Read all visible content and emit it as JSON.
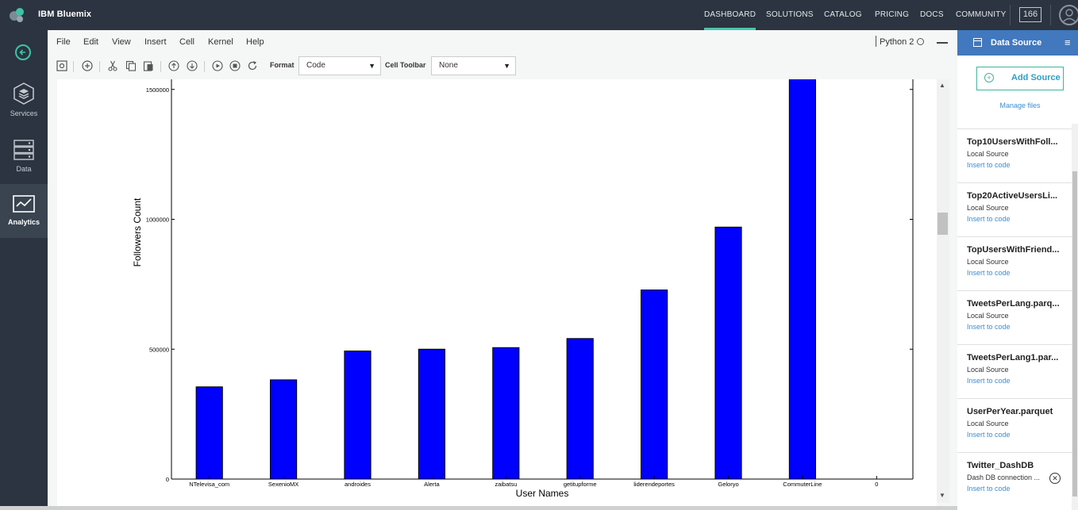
{
  "topbar": {
    "brand": "IBM Bluemix",
    "nav": [
      {
        "label": "DASHBOARD",
        "active": true
      },
      {
        "label": "SOLUTIONS",
        "active": false
      },
      {
        "label": "CATALOG",
        "active": false
      },
      {
        "label": "PRICING",
        "active": false
      },
      {
        "label": "DOCS",
        "active": false
      },
      {
        "label": "COMMUNITY",
        "active": false
      }
    ],
    "notification_count": "166"
  },
  "leftnav": {
    "items": [
      {
        "label": "Services",
        "icon": "services-icon"
      },
      {
        "label": "Data",
        "icon": "data-icon"
      },
      {
        "label": "Analytics",
        "icon": "analytics-icon",
        "active": true
      }
    ]
  },
  "notebook": {
    "menus": [
      "File",
      "Edit",
      "View",
      "Insert",
      "Cell",
      "Kernel",
      "Help"
    ],
    "kernel": "Python 2",
    "toolbar": {
      "format_label": "Format",
      "format_value": "Code",
      "cell_toolbar_label": "Cell Toolbar",
      "cell_toolbar_value": "None"
    }
  },
  "chart_data": {
    "type": "bar",
    "categories": [
      "NTelevisa_com",
      "SexenioMX",
      "androides",
      "Alerta",
      "zaibatsu",
      "getitupforme",
      "liderendeportes",
      "Geloryo",
      "CommuterLine",
      "0"
    ],
    "values": [
      355000,
      382000,
      493000,
      500000,
      506000,
      541000,
      728000,
      970000,
      1620000,
      null
    ],
    "xlabel": "User Names",
    "ylabel": "Followers Count",
    "yticks": [
      "0",
      "500000",
      "1000000",
      "1500000"
    ],
    "ylim": [
      0,
      1500000
    ],
    "bar_color": "#0000ff",
    "grid": false
  },
  "data_source": {
    "title": "Data Source",
    "add_label": "Add Source",
    "manage_label": "Manage files",
    "items": [
      {
        "name": "Top10UsersWithFoll...",
        "type": "Local Source",
        "action": "Insert to code"
      },
      {
        "name": "Top20ActiveUsersLi...",
        "type": "Local Source",
        "action": "Insert to code"
      },
      {
        "name": "TopUsersWithFriend...",
        "type": "Local Source",
        "action": "Insert to code"
      },
      {
        "name": "TweetsPerLang.parq...",
        "type": "Local Source",
        "action": "Insert to code"
      },
      {
        "name": "TweetsPerLang1.par...",
        "type": "Local Source",
        "action": "Insert to code"
      },
      {
        "name": "UserPerYear.parquet",
        "type": "Local Source",
        "action": "Insert to code"
      },
      {
        "name": "Twitter_DashDB",
        "type": "Dash DB connection ...",
        "action": "Insert to code",
        "removable": true
      }
    ]
  }
}
